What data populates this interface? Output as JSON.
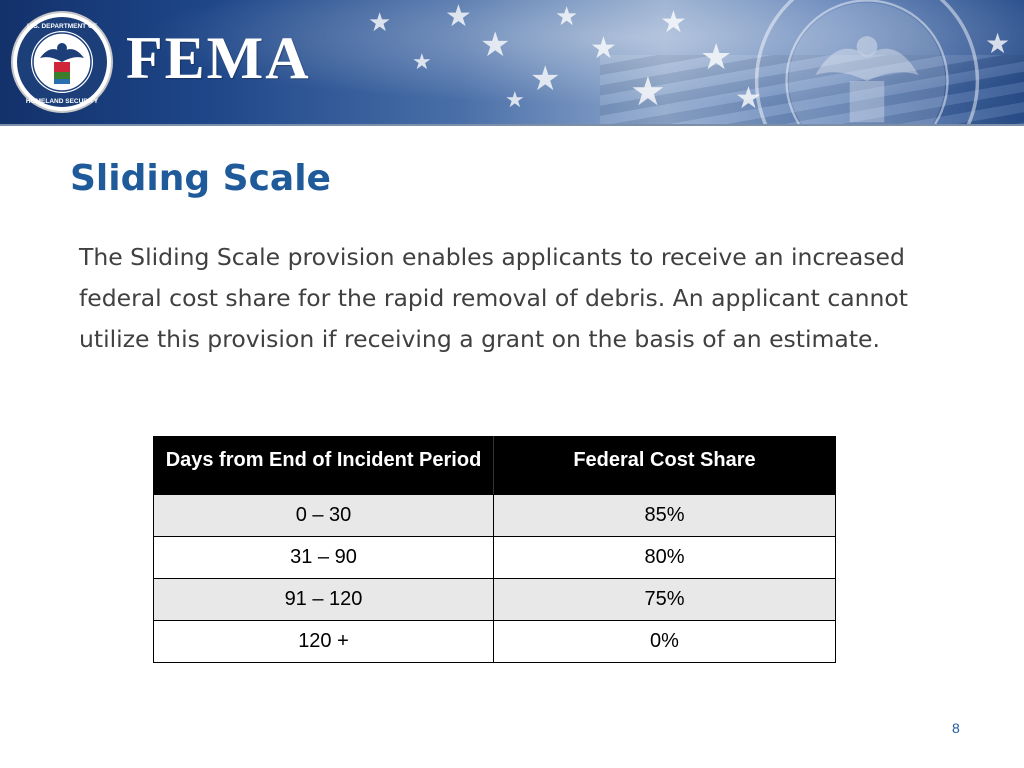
{
  "header": {
    "agency": "FEMA",
    "seal_ring_text": "U.S. DEPARTMENT OF HOMELAND SECURITY",
    "colors": {
      "banner_dark": "#13316b",
      "banner_light": "#8ea7cc"
    }
  },
  "slide": {
    "title": "Sliding Scale",
    "body": "The Sliding Scale provision enables applicants to receive an increased federal cost share for the rapid removal of debris. An applicant cannot utilize this provision if receiving a grant on the basis of an estimate.",
    "title_color": "#1f5b9a",
    "page_number": "8"
  },
  "table": {
    "headers": [
      "Days from End of Incident Period",
      "Federal Cost Share"
    ],
    "rows": [
      [
        "0 – 30",
        "85%"
      ],
      [
        "31 – 90",
        "80%"
      ],
      [
        "91 – 120",
        "75%"
      ],
      [
        "120 +",
        "0%"
      ]
    ]
  }
}
